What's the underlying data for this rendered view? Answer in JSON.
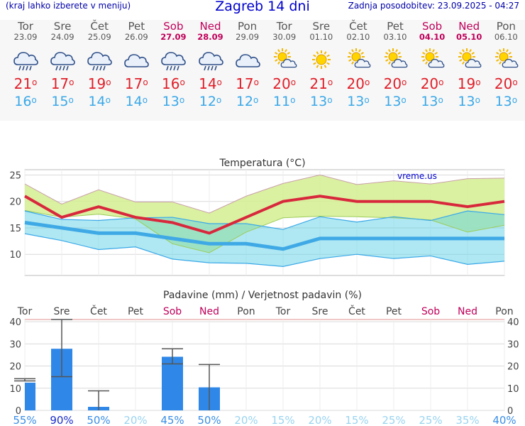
{
  "header": {
    "menu_hint": "(kraj lahko izberete v meniju)",
    "title": "Zagreb 14 dni",
    "last_update": "Zadnja posodobitev: 23.09.2025 - 04:27"
  },
  "days": [
    {
      "name": "Tor",
      "date": "23.09",
      "weekend": false,
      "icon": "rain-cloud-icon",
      "tmax": "21",
      "tmin": "16"
    },
    {
      "name": "Sre",
      "date": "24.09",
      "weekend": false,
      "icon": "rain-cloud-icon",
      "tmax": "17",
      "tmin": "15"
    },
    {
      "name": "Čet",
      "date": "25.09",
      "weekend": false,
      "icon": "rain-cloud-icon",
      "tmax": "19",
      "tmin": "14"
    },
    {
      "name": "Pet",
      "date": "26.09",
      "weekend": false,
      "icon": "cloud-icon",
      "tmax": "17",
      "tmin": "14"
    },
    {
      "name": "Sob",
      "date": "27.09",
      "weekend": true,
      "icon": "rain-cloud-icon",
      "tmax": "16",
      "tmin": "13"
    },
    {
      "name": "Ned",
      "date": "28.09",
      "weekend": true,
      "icon": "rain-cloud-icon",
      "tmax": "14",
      "tmin": "12"
    },
    {
      "name": "Pon",
      "date": "29.09",
      "weekend": false,
      "icon": "cloud-icon",
      "tmax": "17",
      "tmin": "12"
    },
    {
      "name": "Tor",
      "date": "30.09",
      "weekend": false,
      "icon": "sun-cloud-icon",
      "tmax": "20",
      "tmin": "11"
    },
    {
      "name": "Sre",
      "date": "01.10",
      "weekend": false,
      "icon": "sun-icon",
      "tmax": "21",
      "tmin": "13"
    },
    {
      "name": "Čet",
      "date": "02.10",
      "weekend": false,
      "icon": "sun-cloud-icon",
      "tmax": "20",
      "tmin": "13"
    },
    {
      "name": "Pet",
      "date": "03.10",
      "weekend": false,
      "icon": "sun-cloud-icon",
      "tmax": "20",
      "tmin": "13"
    },
    {
      "name": "Sob",
      "date": "04.10",
      "weekend": true,
      "icon": "sun-cloud-icon",
      "tmax": "20",
      "tmin": "13"
    },
    {
      "name": "Ned",
      "date": "05.10",
      "weekend": true,
      "icon": "sun-cloud-icon",
      "tmax": "19",
      "tmin": "13"
    },
    {
      "name": "Pon",
      "date": "06.10",
      "weekend": false,
      "icon": "sun-cloud-icon",
      "tmax": "20",
      "tmin": "13"
    }
  ],
  "degree_symbol": "o",
  "chart_data": [
    {
      "type": "line",
      "title": "Temperatura (°C)",
      "watermark": "vreme.us",
      "ylim": [
        6,
        26
      ],
      "yticks": [
        10,
        15,
        20,
        25
      ],
      "grid": true,
      "x": [
        "23.09",
        "24.09",
        "25.09",
        "26.09",
        "27.09",
        "28.09",
        "29.09",
        "30.09",
        "01.10",
        "02.10",
        "03.10",
        "04.10",
        "05.10",
        "06.10"
      ],
      "series": [
        {
          "role": "max",
          "color": "#d8283c",
          "values": [
            21,
            17,
            19,
            17,
            16,
            14,
            17,
            20,
            21,
            20,
            20,
            20,
            19,
            20
          ]
        },
        {
          "role": "min",
          "color": "#3fa9e6",
          "values": [
            16,
            15,
            14,
            14,
            13,
            12,
            12,
            11,
            13,
            13,
            13,
            13,
            13,
            13
          ]
        },
        {
          "role": "max-upper",
          "color": "#d4ee90",
          "values": [
            23.3,
            19.5,
            22.2,
            19.9,
            19.9,
            17.8,
            21.0,
            23.4,
            25.0,
            23.2,
            23.9,
            23.3,
            24.3,
            24.4
          ]
        },
        {
          "role": "max-lower",
          "color": "#d4ee90",
          "values": [
            18.3,
            17.0,
            17.6,
            16.7,
            12.0,
            10.3,
            14.2,
            16.9,
            17.2,
            17.1,
            16.9,
            16.5,
            14.2,
            15.5
          ]
        },
        {
          "role": "min-upper",
          "color": "#a6e6f0",
          "values": [
            18.2,
            16.6,
            16.4,
            16.9,
            17.0,
            15.8,
            15.8,
            14.7,
            17.1,
            16.1,
            17.1,
            16.4,
            18.2,
            17.5
          ]
        },
        {
          "role": "min-lower",
          "color": "#a6e6f0",
          "values": [
            13.9,
            12.6,
            10.9,
            11.4,
            9.1,
            8.4,
            8.3,
            7.7,
            9.2,
            10.0,
            9.2,
            9.7,
            8.1,
            8.7
          ]
        }
      ]
    },
    {
      "type": "bar",
      "title": "Padavine (mm) / Verjetnost padavin (%)",
      "categories": [
        "Tor",
        "Sre",
        "Čet",
        "Pet",
        "Sob",
        "Ned",
        "Pon",
        "Tor",
        "Sre",
        "Čet",
        "Pet",
        "Sob",
        "Ned",
        "Pon"
      ],
      "weekend": [
        false,
        false,
        false,
        false,
        true,
        true,
        false,
        false,
        false,
        false,
        false,
        true,
        true,
        false
      ],
      "ylim": [
        0,
        41
      ],
      "yticks": [
        0,
        10,
        20,
        30,
        40
      ],
      "bar_color": "#2f88e8",
      "values": [
        12.5,
        27.8,
        1.6,
        0,
        24.2,
        10.4,
        0,
        0,
        0,
        0,
        0,
        0,
        0,
        0
      ],
      "error_low": [
        13.3,
        15.2,
        0,
        0,
        21.0,
        0,
        0,
        0,
        0,
        0,
        0,
        0,
        0,
        0
      ],
      "error_high": [
        14.3,
        41.0,
        8.8,
        0,
        27.8,
        20.7,
        0,
        0,
        0,
        0,
        0,
        0,
        0,
        0
      ],
      "probabilities": [
        "55%",
        "90%",
        "50%",
        "20%",
        "45%",
        "50%",
        "20%",
        "15%",
        "20%",
        "15%",
        "25%",
        "25%",
        "35%",
        "40%"
      ],
      "probability_colors": [
        "#3a8ee6",
        "#1a2ec8",
        "#3a8ee6",
        "#9ad4f0",
        "#3a8ee6",
        "#3a8ee6",
        "#9ad4f0",
        "#9ad4f0",
        "#9ad4f0",
        "#9ad4f0",
        "#9ad4f0",
        "#9ad4f0",
        "#9ad4f0",
        "#3a8ee6"
      ]
    }
  ]
}
